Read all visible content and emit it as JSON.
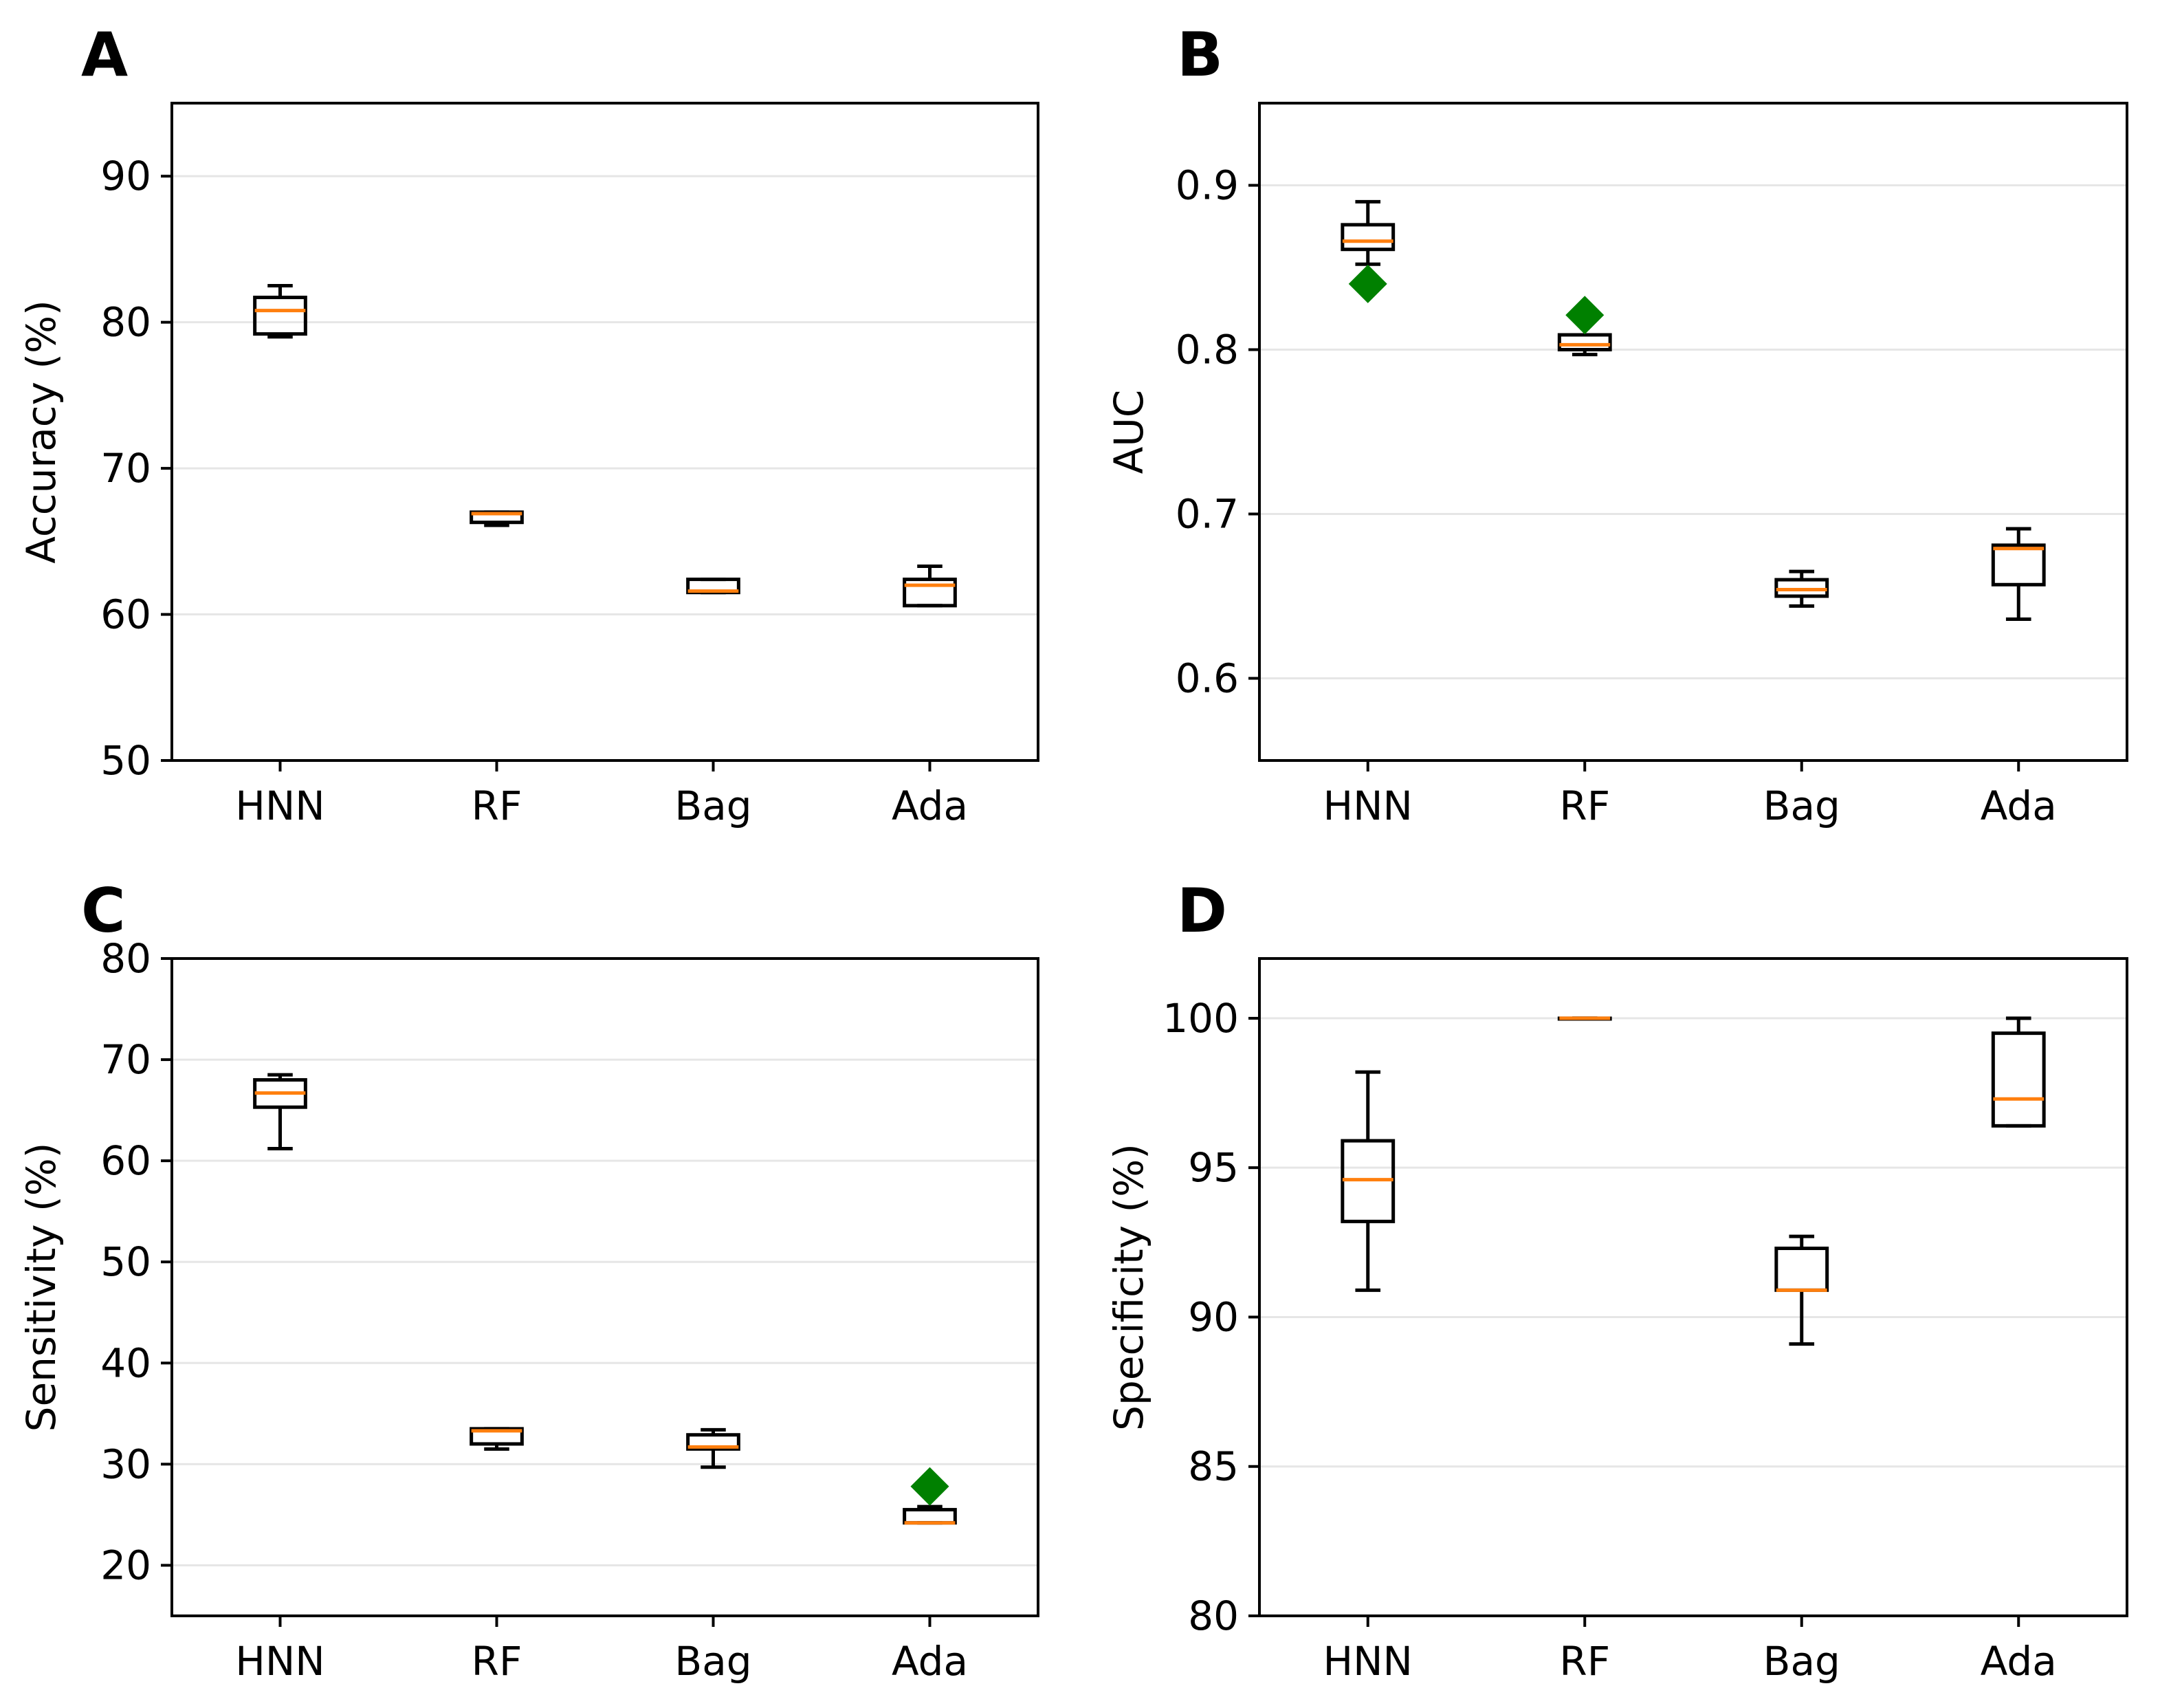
{
  "chart_data": [
    {
      "panel": "A",
      "type": "box",
      "categories": [
        "HNN",
        "RF",
        "Bag",
        "Ada"
      ],
      "ylabel": "Accuracy (%)",
      "ylim": [
        50,
        95
      ],
      "yticks": [
        50,
        60,
        70,
        80,
        90
      ],
      "grid": "y",
      "boxes": [
        {
          "whisker_low": 79.0,
          "q1": 79.2,
          "median": 80.8,
          "q3": 81.7,
          "whisker_high": 82.5,
          "outliers": []
        },
        {
          "whisker_low": 66.1,
          "q1": 66.3,
          "median": 66.9,
          "q3": 67.0,
          "whisker_high": 67.0,
          "outliers": []
        },
        {
          "whisker_low": 61.5,
          "q1": 61.5,
          "median": 61.6,
          "q3": 62.4,
          "whisker_high": 62.4,
          "outliers": []
        },
        {
          "whisker_low": 60.6,
          "q1": 60.6,
          "median": 62.0,
          "q3": 62.4,
          "whisker_high": 63.3,
          "outliers": []
        }
      ]
    },
    {
      "panel": "B",
      "type": "box",
      "categories": [
        "HNN",
        "RF",
        "Bag",
        "Ada"
      ],
      "ylabel": "AUC",
      "ylim": [
        0.55,
        0.95
      ],
      "yticks": [
        0.6,
        0.7,
        0.8,
        0.9
      ],
      "grid": "y",
      "boxes": [
        {
          "whisker_low": 0.852,
          "q1": 0.861,
          "median": 0.866,
          "q3": 0.876,
          "whisker_high": 0.89,
          "outliers": [
            0.84
          ]
        },
        {
          "whisker_low": 0.797,
          "q1": 0.8,
          "median": 0.803,
          "q3": 0.809,
          "whisker_high": 0.809,
          "outliers": [
            0.821
          ]
        },
        {
          "whisker_low": 0.644,
          "q1": 0.65,
          "median": 0.654,
          "q3": 0.66,
          "whisker_high": 0.665,
          "outliers": []
        },
        {
          "whisker_low": 0.636,
          "q1": 0.657,
          "median": 0.679,
          "q3": 0.681,
          "whisker_high": 0.691,
          "outliers": []
        }
      ]
    },
    {
      "panel": "C",
      "type": "box",
      "categories": [
        "HNN",
        "RF",
        "Bag",
        "Ada"
      ],
      "ylabel": "Sensitivity (%)",
      "ylim": [
        15,
        80
      ],
      "yticks": [
        20,
        30,
        40,
        50,
        60,
        70,
        80
      ],
      "grid": "y",
      "boxes": [
        {
          "whisker_low": 61.2,
          "q1": 65.3,
          "median": 66.7,
          "q3": 68.0,
          "whisker_high": 68.5,
          "outliers": []
        },
        {
          "whisker_low": 31.5,
          "q1": 32.0,
          "median": 33.3,
          "q3": 33.5,
          "whisker_high": 33.5,
          "outliers": []
        },
        {
          "whisker_low": 29.7,
          "q1": 31.5,
          "median": 31.7,
          "q3": 32.9,
          "whisker_high": 33.4,
          "outliers": []
        },
        {
          "whisker_low": 24.2,
          "q1": 24.2,
          "median": 24.2,
          "q3": 25.5,
          "whisker_high": 25.8,
          "outliers": [
            27.8
          ]
        }
      ]
    },
    {
      "panel": "D",
      "type": "box",
      "categories": [
        "HNN",
        "RF",
        "Bag",
        "Ada"
      ],
      "ylabel": "Specificity (%)",
      "ylim": [
        80,
        102
      ],
      "yticks": [
        80,
        85,
        90,
        95,
        100
      ],
      "grid": "y",
      "boxes": [
        {
          "whisker_low": 90.9,
          "q1": 93.2,
          "median": 94.6,
          "q3": 95.9,
          "whisker_high": 98.2,
          "outliers": []
        },
        {
          "whisker_low": 100.0,
          "q1": 100.0,
          "median": 100.0,
          "q3": 100.0,
          "whisker_high": 100.0,
          "outliers": []
        },
        {
          "whisker_low": 89.1,
          "q1": 90.9,
          "median": 90.9,
          "q3": 92.3,
          "whisker_high": 92.7,
          "outliers": []
        },
        {
          "whisker_low": 96.4,
          "q1": 96.4,
          "median": 97.3,
          "q3": 99.5,
          "whisker_high": 100.0,
          "outliers": []
        }
      ]
    }
  ],
  "colors": {
    "box": "#000000",
    "median": "#ff7f0e",
    "outlier": "#008000",
    "grid": "#e6e6e6"
  }
}
